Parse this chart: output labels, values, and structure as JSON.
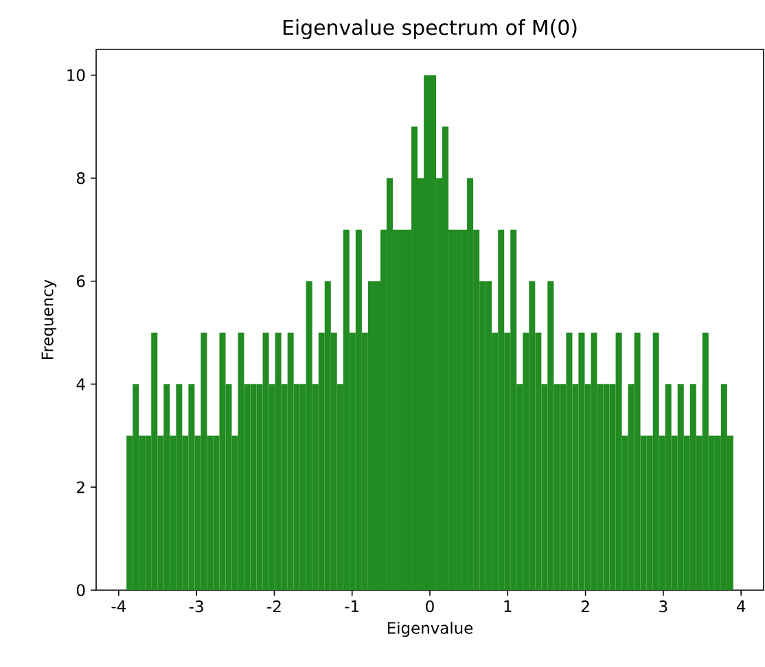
{
  "chart_data": {
    "type": "histogram",
    "title": "Eigenvalue spectrum of M(0)",
    "xlabel": "Eigenvalue",
    "ylabel": "Frequency",
    "color": "#228b22",
    "bins": [
      -3.9,
      -3.82,
      -3.741,
      -3.661,
      -3.582,
      -3.502,
      -3.422,
      -3.343,
      -3.263,
      -3.184,
      -3.104,
      -3.024,
      -2.945,
      -2.865,
      -2.786,
      -2.706,
      -2.626,
      -2.547,
      -2.467,
      -2.388,
      -2.308,
      -2.228,
      -2.149,
      -2.069,
      -1.99,
      -1.91,
      -1.83,
      -1.751,
      -1.671,
      -1.592,
      -1.512,
      -1.432,
      -1.353,
      -1.273,
      -1.194,
      -1.114,
      -1.034,
      -0.955,
      -0.875,
      -0.796,
      -0.716,
      -0.636,
      -0.557,
      -0.477,
      -0.398,
      -0.318,
      -0.238,
      -0.159,
      -0.079,
      0.0,
      0.08,
      0.159,
      0.239,
      0.318,
      0.398,
      0.477,
      0.557,
      0.637,
      0.716,
      0.796,
      0.876,
      0.955,
      1.035,
      1.114,
      1.194,
      1.274,
      1.353,
      1.433,
      1.512,
      1.592,
      1.672,
      1.751,
      1.831,
      1.91,
      1.99,
      2.07,
      2.149,
      2.229,
      2.308,
      2.388,
      2.468,
      2.547,
      2.627,
      2.706,
      2.786,
      2.866,
      2.945,
      3.025,
      3.104,
      3.184,
      3.264,
      3.343,
      3.423,
      3.502,
      3.582,
      3.662,
      3.741,
      3.821,
      3.9
    ],
    "values": [
      3,
      4,
      3,
      3,
      5,
      3,
      4,
      3,
      4,
      3,
      4,
      3,
      5,
      3,
      3,
      5,
      4,
      3,
      5,
      4,
      4,
      4,
      5,
      4,
      5,
      4,
      5,
      4,
      4,
      6,
      4,
      5,
      6,
      5,
      4,
      7,
      5,
      7,
      5,
      6,
      6,
      7,
      8,
      7,
      7,
      7,
      9,
      8,
      10,
      10,
      8,
      9,
      7,
      7,
      7,
      8,
      7,
      6,
      6,
      5,
      7,
      5,
      7,
      4,
      5,
      6,
      5,
      4,
      6,
      4,
      4,
      5,
      4,
      5,
      4,
      5,
      4,
      4,
      4,
      5,
      3,
      4,
      5,
      3,
      3,
      5,
      3,
      4,
      3,
      4,
      3,
      4,
      3,
      5,
      3,
      3,
      4,
      3
    ],
    "xlim": [
      -4.29,
      4.29
    ],
    "ylim": [
      0,
      10.5
    ],
    "xticks": [
      -4,
      -3,
      -2,
      -1,
      0,
      1,
      2,
      3,
      4
    ],
    "yticks": [
      0,
      2,
      4,
      6,
      8,
      10
    ]
  }
}
